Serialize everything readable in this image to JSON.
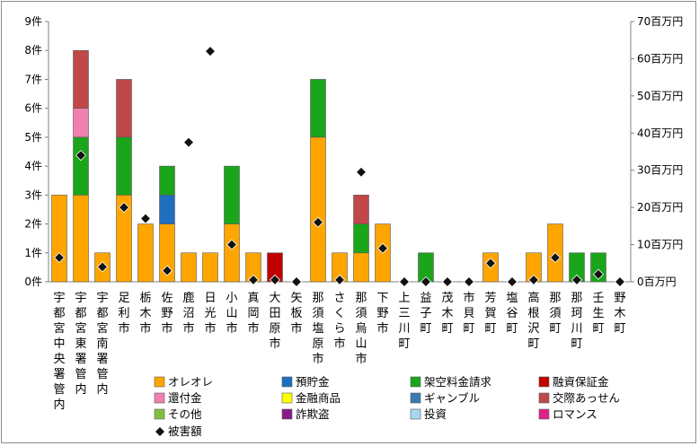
{
  "chart_data": {
    "type": "bar",
    "stacked": true,
    "categories": [
      "宇都宮中央署管内",
      "宇都宮東署管内",
      "宇都宮南署管内",
      "足利市",
      "栃木市",
      "佐野市",
      "鹿沼市",
      "日光市",
      "小山市",
      "真岡市",
      "大田原市",
      "矢板市",
      "那須塩原市",
      "さくら市",
      "那須烏山市",
      "下野市",
      "上三川町",
      "益子町",
      "茂木町",
      "市貝町",
      "芳賀町",
      "塩谷町",
      "高根沢町",
      "那須町",
      "那珂川町",
      "壬生町",
      "野木町"
    ],
    "left_axis": {
      "unit_label": "件",
      "min": 0,
      "max": 9,
      "step": 1
    },
    "right_axis": {
      "unit_label": "百万円",
      "min": 0,
      "max": 70,
      "step": 10
    },
    "series": [
      {
        "name": "オレオレ",
        "color": "#ffa500",
        "values": [
          3,
          3,
          1,
          3,
          2,
          2,
          1,
          1,
          2,
          1,
          0,
          0,
          5,
          1,
          1,
          2,
          0,
          0,
          0,
          0,
          1,
          0,
          1,
          2,
          0,
          0,
          0
        ]
      },
      {
        "name": "預貯金",
        "color": "#1f6fc0",
        "values": [
          0,
          0,
          0,
          0,
          0,
          1,
          0,
          0,
          0,
          0,
          0,
          0,
          0,
          0,
          0,
          0,
          0,
          0,
          0,
          0,
          0,
          0,
          0,
          0,
          0,
          0,
          0
        ]
      },
      {
        "name": "架空料金請求",
        "color": "#1aa51a",
        "values": [
          0,
          2,
          0,
          2,
          0,
          1,
          0,
          0,
          2,
          0,
          0,
          0,
          2,
          0,
          1,
          0,
          0,
          1,
          0,
          0,
          0,
          0,
          0,
          0,
          1,
          1,
          0
        ]
      },
      {
        "name": "融資保証金",
        "color": "#c00000",
        "values": [
          0,
          0,
          0,
          0,
          0,
          0,
          0,
          0,
          0,
          0,
          1,
          0,
          0,
          0,
          0,
          0,
          0,
          0,
          0,
          0,
          0,
          0,
          0,
          0,
          0,
          0,
          0
        ]
      },
      {
        "name": "還付金",
        "color": "#f080b0",
        "values": [
          0,
          1,
          0,
          0,
          0,
          0,
          0,
          0,
          0,
          0,
          0,
          0,
          0,
          0,
          0,
          0,
          0,
          0,
          0,
          0,
          0,
          0,
          0,
          0,
          0,
          0,
          0
        ]
      },
      {
        "name": "金融商品",
        "color": "#ffff00",
        "values": [
          0,
          0,
          0,
          0,
          0,
          0,
          0,
          0,
          0,
          0,
          0,
          0,
          0,
          0,
          0,
          0,
          0,
          0,
          0,
          0,
          0,
          0,
          0,
          0,
          0,
          0,
          0
        ]
      },
      {
        "name": "ギャンブル",
        "color": "#3a7ab0",
        "values": [
          0,
          0,
          0,
          0,
          0,
          0,
          0,
          0,
          0,
          0,
          0,
          0,
          0,
          0,
          0,
          0,
          0,
          0,
          0,
          0,
          0,
          0,
          0,
          0,
          0,
          0,
          0
        ]
      },
      {
        "name": "交際あっせん",
        "color": "#c04848",
        "values": [
          0,
          2,
          0,
          2,
          0,
          0,
          0,
          0,
          0,
          0,
          0,
          0,
          0,
          0,
          1,
          0,
          0,
          0,
          0,
          0,
          0,
          0,
          0,
          0,
          0,
          0,
          0
        ]
      },
      {
        "name": "その他",
        "color": "#80c040",
        "values": [
          0,
          0,
          0,
          0,
          0,
          0,
          0,
          0,
          0,
          0,
          0,
          0,
          0,
          0,
          0,
          0,
          0,
          0,
          0,
          0,
          0,
          0,
          0,
          0,
          0,
          0,
          0
        ]
      },
      {
        "name": "詐欺盗",
        "color": "#8a1a8a",
        "values": [
          0,
          0,
          0,
          0,
          0,
          0,
          0,
          0,
          0,
          0,
          0,
          0,
          0,
          0,
          0,
          0,
          0,
          0,
          0,
          0,
          0,
          0,
          0,
          0,
          0,
          0,
          0
        ]
      },
      {
        "name": "投資",
        "color": "#a8d8f0",
        "values": [
          0,
          0,
          0,
          0,
          0,
          0,
          0,
          0,
          0,
          0,
          0,
          0,
          0,
          0,
          0,
          0,
          0,
          0,
          0,
          0,
          0,
          0,
          0,
          0,
          0,
          0,
          0
        ]
      },
      {
        "name": "ロマンス",
        "color": "#e0208a",
        "values": [
          0,
          0,
          0,
          0,
          0,
          0,
          0,
          0,
          0,
          0,
          0,
          0,
          0,
          0,
          0,
          0,
          0,
          0,
          0,
          0,
          0,
          0,
          0,
          0,
          0,
          0,
          0
        ]
      }
    ],
    "damage_series": {
      "name": "被害額",
      "axis": "right",
      "marker": "diamond",
      "color": "#111111",
      "values": [
        6.5,
        34,
        4,
        20,
        17,
        3,
        37.5,
        62,
        10,
        0.5,
        0.5,
        0,
        16,
        0.5,
        29.5,
        9,
        0,
        0,
        0,
        0,
        5,
        0,
        0.5,
        6.5,
        0.5,
        2,
        0
      ]
    },
    "grid": false,
    "legend_position": "bottom"
  }
}
